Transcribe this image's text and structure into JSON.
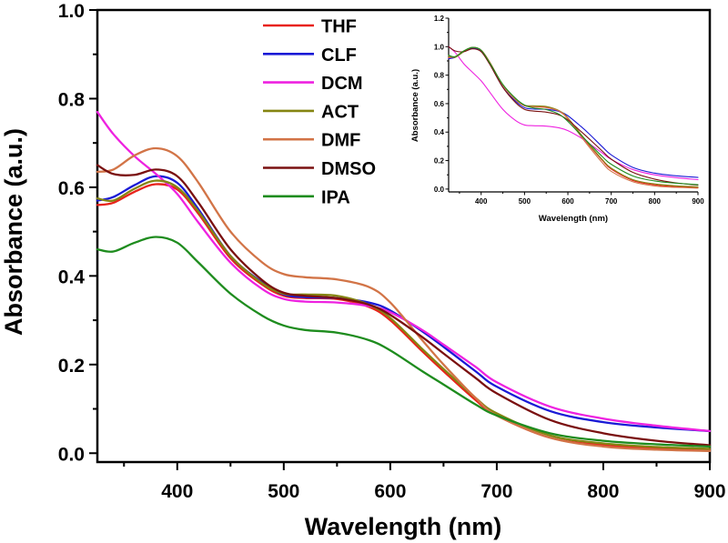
{
  "chart_data": [
    {
      "id": "main",
      "type": "line",
      "title": "",
      "xlabel": "Wavelength (nm)",
      "ylabel": "Absorbance (a.u.)",
      "xlim": [
        325,
        900
      ],
      "ylim": [
        -0.02,
        1.0
      ],
      "xticks": [
        400,
        500,
        600,
        700,
        800,
        900
      ],
      "xtick_labels": [
        "400",
        "500",
        "600",
        "700",
        "800",
        "900"
      ],
      "yticks": [
        0.0,
        0.2,
        0.4,
        0.6,
        0.8,
        1.0
      ],
      "ytick_labels": [
        "0.0",
        "0.2",
        "0.4",
        "0.6",
        "0.8",
        "1.0"
      ],
      "grid": false,
      "legend": "top-center",
      "x": [
        325,
        340,
        360,
        380,
        400,
        420,
        450,
        480,
        500,
        520,
        550,
        580,
        600,
        630,
        650,
        680,
        700,
        750,
        800,
        850,
        900
      ],
      "series": [
        {
          "name": "THF",
          "color": "#e8231b",
          "values": [
            0.56,
            0.565,
            0.59,
            0.607,
            0.595,
            0.54,
            0.44,
            0.38,
            0.355,
            0.35,
            0.348,
            0.33,
            0.3,
            0.23,
            0.185,
            0.12,
            0.085,
            0.035,
            0.018,
            0.01,
            0.006
          ]
        },
        {
          "name": "CLF",
          "color": "#1a1ad6",
          "values": [
            0.57,
            0.578,
            0.605,
            0.625,
            0.61,
            0.55,
            0.445,
            0.385,
            0.358,
            0.352,
            0.35,
            0.34,
            0.322,
            0.275,
            0.24,
            0.185,
            0.15,
            0.095,
            0.07,
            0.058,
            0.05
          ]
        },
        {
          "name": "DCM",
          "color": "#ee22e0",
          "values": [
            0.77,
            0.72,
            0.67,
            0.63,
            0.585,
            0.52,
            0.43,
            0.37,
            0.348,
            0.342,
            0.34,
            0.332,
            0.318,
            0.278,
            0.245,
            0.195,
            0.16,
            0.105,
            0.078,
            0.062,
            0.05
          ]
        },
        {
          "name": "ACT",
          "color": "#858512",
          "values": [
            0.575,
            0.57,
            0.597,
            0.615,
            0.6,
            0.545,
            0.445,
            0.383,
            0.36,
            0.358,
            0.355,
            0.335,
            0.305,
            0.235,
            0.19,
            0.125,
            0.09,
            0.04,
            0.022,
            0.014,
            0.01
          ]
        },
        {
          "name": "DMF",
          "color": "#d27447",
          "values": [
            0.635,
            0.64,
            0.672,
            0.688,
            0.67,
            0.61,
            0.5,
            0.43,
            0.404,
            0.397,
            0.392,
            0.375,
            0.34,
            0.255,
            0.2,
            0.125,
            0.085,
            0.035,
            0.015,
            0.008,
            0.005
          ]
        },
        {
          "name": "DMSO",
          "color": "#7a1010",
          "values": [
            0.65,
            0.63,
            0.628,
            0.64,
            0.625,
            0.565,
            0.46,
            0.39,
            0.362,
            0.355,
            0.35,
            0.335,
            0.312,
            0.262,
            0.225,
            0.17,
            0.135,
            0.075,
            0.045,
            0.028,
            0.018
          ]
        },
        {
          "name": "IPA",
          "color": "#1e8c1e",
          "values": [
            0.46,
            0.455,
            0.475,
            0.488,
            0.475,
            0.43,
            0.36,
            0.31,
            0.288,
            0.278,
            0.272,
            0.255,
            0.232,
            0.185,
            0.155,
            0.11,
            0.085,
            0.045,
            0.028,
            0.02,
            0.015
          ]
        }
      ]
    },
    {
      "id": "inset",
      "type": "line",
      "title": "",
      "xlabel": "Wavelength (nm)",
      "ylabel": "Absorbance (a.u.)",
      "xlim": [
        325,
        900
      ],
      "ylim": [
        -0.02,
        1.2
      ],
      "xticks": [
        400,
        500,
        600,
        700,
        800,
        900
      ],
      "xtick_labels": [
        "400",
        "500",
        "600",
        "700",
        "800",
        "900"
      ],
      "yticks": [
        0.0,
        0.2,
        0.4,
        0.6,
        0.8,
        1.0,
        1.2
      ],
      "ytick_labels": [
        "0.0",
        "0.2",
        "0.4",
        "0.6",
        "0.8",
        "1.0",
        "1.2"
      ],
      "grid": false,
      "legend": "none",
      "placement": "top-right inset",
      "x": [
        325,
        340,
        360,
        380,
        400,
        420,
        450,
        480,
        500,
        520,
        550,
        580,
        600,
        630,
        650,
        680,
        700,
        750,
        800,
        850,
        900
      ],
      "series": [
        {
          "name": "THF",
          "color": "#e8231b",
          "values": [
            0.92,
            0.925,
            0.965,
            0.99,
            0.975,
            0.89,
            0.73,
            0.625,
            0.585,
            0.578,
            0.575,
            0.545,
            0.495,
            0.38,
            0.305,
            0.2,
            0.14,
            0.06,
            0.03,
            0.016,
            0.01
          ]
        },
        {
          "name": "CLF",
          "color": "#1a1ad6",
          "values": [
            0.915,
            0.925,
            0.965,
            0.99,
            0.97,
            0.88,
            0.715,
            0.615,
            0.572,
            0.562,
            0.56,
            0.545,
            0.515,
            0.44,
            0.385,
            0.295,
            0.24,
            0.152,
            0.112,
            0.093,
            0.082
          ]
        },
        {
          "name": "DCM",
          "color": "#ee22e0",
          "values": [
            1.0,
            0.96,
            0.88,
            0.82,
            0.76,
            0.68,
            0.56,
            0.48,
            0.45,
            0.445,
            0.442,
            0.43,
            0.41,
            0.36,
            0.318,
            0.252,
            0.208,
            0.137,
            0.1,
            0.08,
            0.066
          ]
        },
        {
          "name": "ACT",
          "color": "#858512",
          "values": [
            0.935,
            0.925,
            0.965,
            0.995,
            0.975,
            0.89,
            0.73,
            0.625,
            0.588,
            0.585,
            0.58,
            0.55,
            0.5,
            0.385,
            0.31,
            0.205,
            0.147,
            0.066,
            0.036,
            0.023,
            0.016
          ]
        },
        {
          "name": "DMF",
          "color": "#d27447",
          "values": [
            0.925,
            0.93,
            0.97,
            0.995,
            0.975,
            0.89,
            0.73,
            0.625,
            0.588,
            0.578,
            0.572,
            0.548,
            0.495,
            0.37,
            0.292,
            0.183,
            0.124,
            0.051,
            0.022,
            0.012,
            0.007
          ]
        },
        {
          "name": "DMSO",
          "color": "#7a1010",
          "values": [
            1.0,
            0.97,
            0.965,
            0.985,
            0.965,
            0.875,
            0.715,
            0.605,
            0.56,
            0.548,
            0.54,
            0.52,
            0.485,
            0.405,
            0.35,
            0.265,
            0.21,
            0.117,
            0.07,
            0.043,
            0.028
          ]
        },
        {
          "name": "IPA",
          "color": "#1e8c1e",
          "values": [
            0.94,
            0.93,
            0.97,
            0.995,
            0.975,
            0.885,
            0.735,
            0.635,
            0.59,
            0.57,
            0.558,
            0.525,
            0.475,
            0.38,
            0.318,
            0.226,
            0.174,
            0.092,
            0.057,
            0.041,
            0.031
          ]
        }
      ]
    }
  ]
}
